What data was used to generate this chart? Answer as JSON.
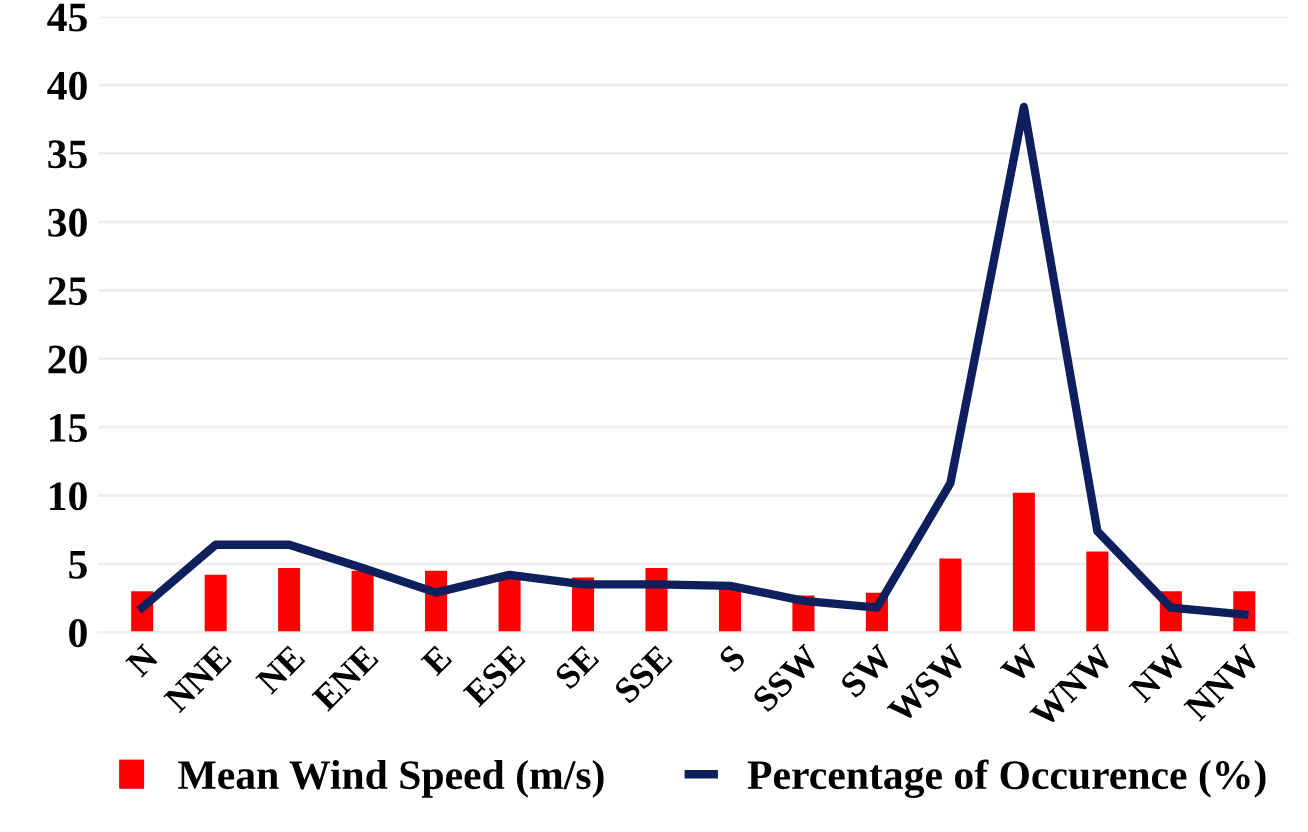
{
  "chart_data": {
    "type": "bar",
    "categories": [
      "N",
      "NNE",
      "NE",
      "ENE",
      "E",
      "ESE",
      "SE",
      "SSE",
      "S",
      "SSW",
      "SW",
      "WSW",
      "W",
      "WNW",
      "NW",
      "NNW"
    ],
    "series": [
      {
        "name": "Mean Wind Speed (m/s)",
        "color": "#ff0000",
        "values": [
          3.0,
          4.2,
          4.7,
          4.5,
          4.5,
          4.0,
          4.0,
          4.7,
          3.4,
          2.7,
          2.9,
          5.4,
          10.2,
          5.9,
          3.0,
          3.0
        ]
      },
      {
        "name": "Percentage of Occurence (%)",
        "type": "line",
        "color": "#0d1f5c",
        "values": [
          1.8,
          6.4,
          6.4,
          4.7,
          2.9,
          4.2,
          3.5,
          3.5,
          3.4,
          2.3,
          1.8,
          10.9,
          38.4,
          7.4,
          1.8,
          1.3
        ]
      }
    ],
    "ylim": [
      0,
      45
    ],
    "yticks": [
      0,
      5,
      10,
      15,
      20,
      25,
      30,
      35,
      40,
      45
    ],
    "grid": "y",
    "legend": "bottom",
    "marker": "none",
    "line_style": "solid"
  }
}
